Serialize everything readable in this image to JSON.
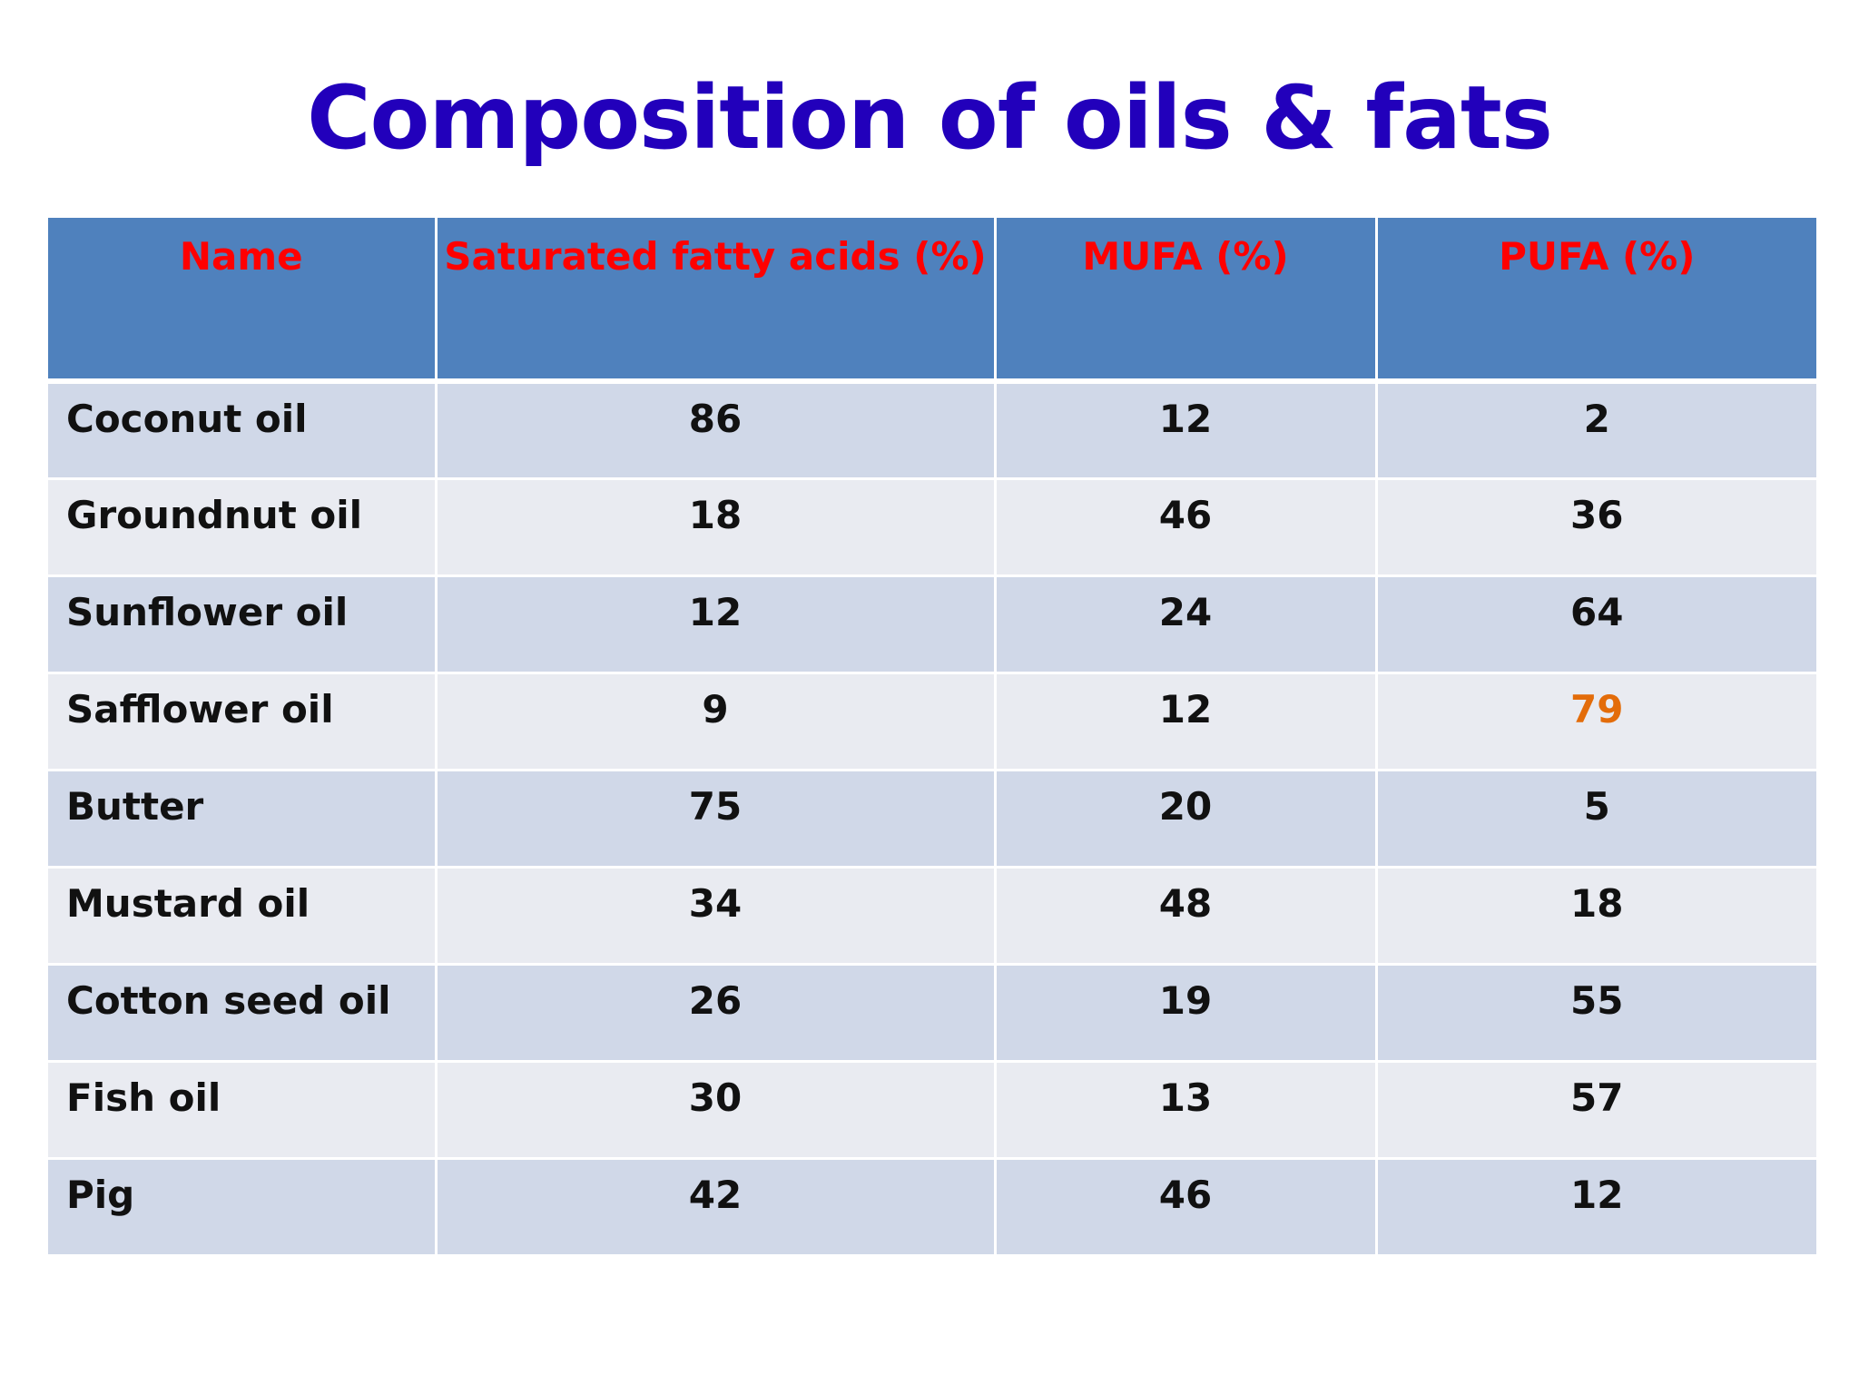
{
  "title": "Composition of oils & fats",
  "colors": {
    "title": "#2200bb",
    "header_bg": "#4f81bd",
    "header_text": "#ff0000",
    "row_odd": "#d0d8e8",
    "row_even": "#e9ebf1",
    "highlight": "#e36c0a"
  },
  "table": {
    "headers": [
      "Name",
      "Saturated fatty acids (%)",
      "MUFA (%)",
      "PUFA (%)"
    ],
    "rows": [
      {
        "name": "Coconut oil",
        "sfa": "86",
        "mufa": "12",
        "pufa": "2"
      },
      {
        "name": "Groundnut oil",
        "sfa": "18",
        "mufa": "46",
        "pufa": "36"
      },
      {
        "name": "Sunflower oil",
        "sfa": "12",
        "mufa": "24",
        "pufa": "64"
      },
      {
        "name": "Safflower oil",
        "sfa": "9",
        "mufa": "12",
        "pufa": "79"
      },
      {
        "name": "Butter",
        "sfa": "75",
        "mufa": "20",
        "pufa": "5"
      },
      {
        "name": "Mustard oil",
        "sfa": "34",
        "mufa": "48",
        "pufa": "18"
      },
      {
        "name": "Cotton seed oil",
        "sfa": "26",
        "mufa": "19",
        "pufa": "55"
      },
      {
        "name": "Fish oil",
        "sfa": "30",
        "mufa": "13",
        "pufa": "57"
      },
      {
        "name": "Pig",
        "sfa": "42",
        "mufa": "46",
        "pufa": "12"
      }
    ]
  }
}
